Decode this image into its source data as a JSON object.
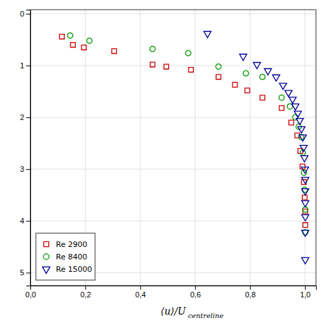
{
  "chart_data": {
    "type": "scatter",
    "x_label": "⟨u⟩/U",
    "annotations": [
      "centreline"
    ],
    "xlim": [
      0.0,
      1.04
    ],
    "ylim": [
      5.25,
      -0.08
    ],
    "xticks": [
      {
        "value": 0.0,
        "label": "0,0"
      },
      {
        "value": 0.2,
        "label": "0,2"
      },
      {
        "value": 0.4,
        "label": "0,4"
      },
      {
        "value": 0.6,
        "label": "0,6"
      },
      {
        "value": 0.8,
        "label": "0,8"
      },
      {
        "value": 1.0,
        "label": "1,0"
      }
    ],
    "yticks": [
      0,
      1,
      2,
      3,
      4,
      5
    ],
    "grid": true,
    "legend": "lower left",
    "series": [
      {
        "name": "Re 2900",
        "color": "#cc0000",
        "marker": "square",
        "x": [
          0.115,
          0.155,
          0.195,
          0.305,
          0.445,
          0.495,
          0.585,
          0.685,
          0.745,
          0.79,
          0.845,
          0.915,
          0.95,
          0.972,
          0.983,
          0.991,
          0.996,
          0.999,
          1.001,
          1.001
        ],
        "values": [
          0.44,
          0.6,
          0.65,
          0.72,
          0.98,
          1.02,
          1.08,
          1.22,
          1.37,
          1.48,
          1.62,
          1.82,
          2.1,
          2.35,
          2.65,
          2.95,
          3.25,
          3.55,
          3.82,
          4.08
        ]
      },
      {
        "name": "Re 8400",
        "color": "#009900",
        "marker": "circle",
        "x": [
          0.145,
          0.215,
          0.445,
          0.575,
          0.685,
          0.785,
          0.845,
          0.915,
          0.945,
          0.965,
          0.977,
          0.986,
          0.992,
          0.996,
          0.999,
          1.001,
          1.001
        ],
        "values": [
          0.42,
          0.52,
          0.68,
          0.76,
          1.02,
          1.15,
          1.22,
          1.62,
          1.79,
          2.0,
          2.18,
          2.38,
          2.68,
          3.07,
          3.4,
          3.78,
          4.22
        ]
      },
      {
        "name": "Re 15000",
        "color": "#000099",
        "marker": "triangle-down",
        "x": [
          0.645,
          0.775,
          0.825,
          0.865,
          0.895,
          0.92,
          0.94,
          0.955,
          0.965,
          0.974,
          0.981,
          0.987,
          0.992,
          0.995,
          0.998,
          1.0,
          1.001,
          1.001,
          1.001,
          1.001,
          1.001,
          1.001
        ],
        "values": [
          0.38,
          0.82,
          0.98,
          1.1,
          1.22,
          1.38,
          1.52,
          1.65,
          1.78,
          1.92,
          2.06,
          2.22,
          2.38,
          2.58,
          2.78,
          3.0,
          3.2,
          3.42,
          3.65,
          3.92,
          4.22,
          4.75
        ]
      }
    ]
  }
}
